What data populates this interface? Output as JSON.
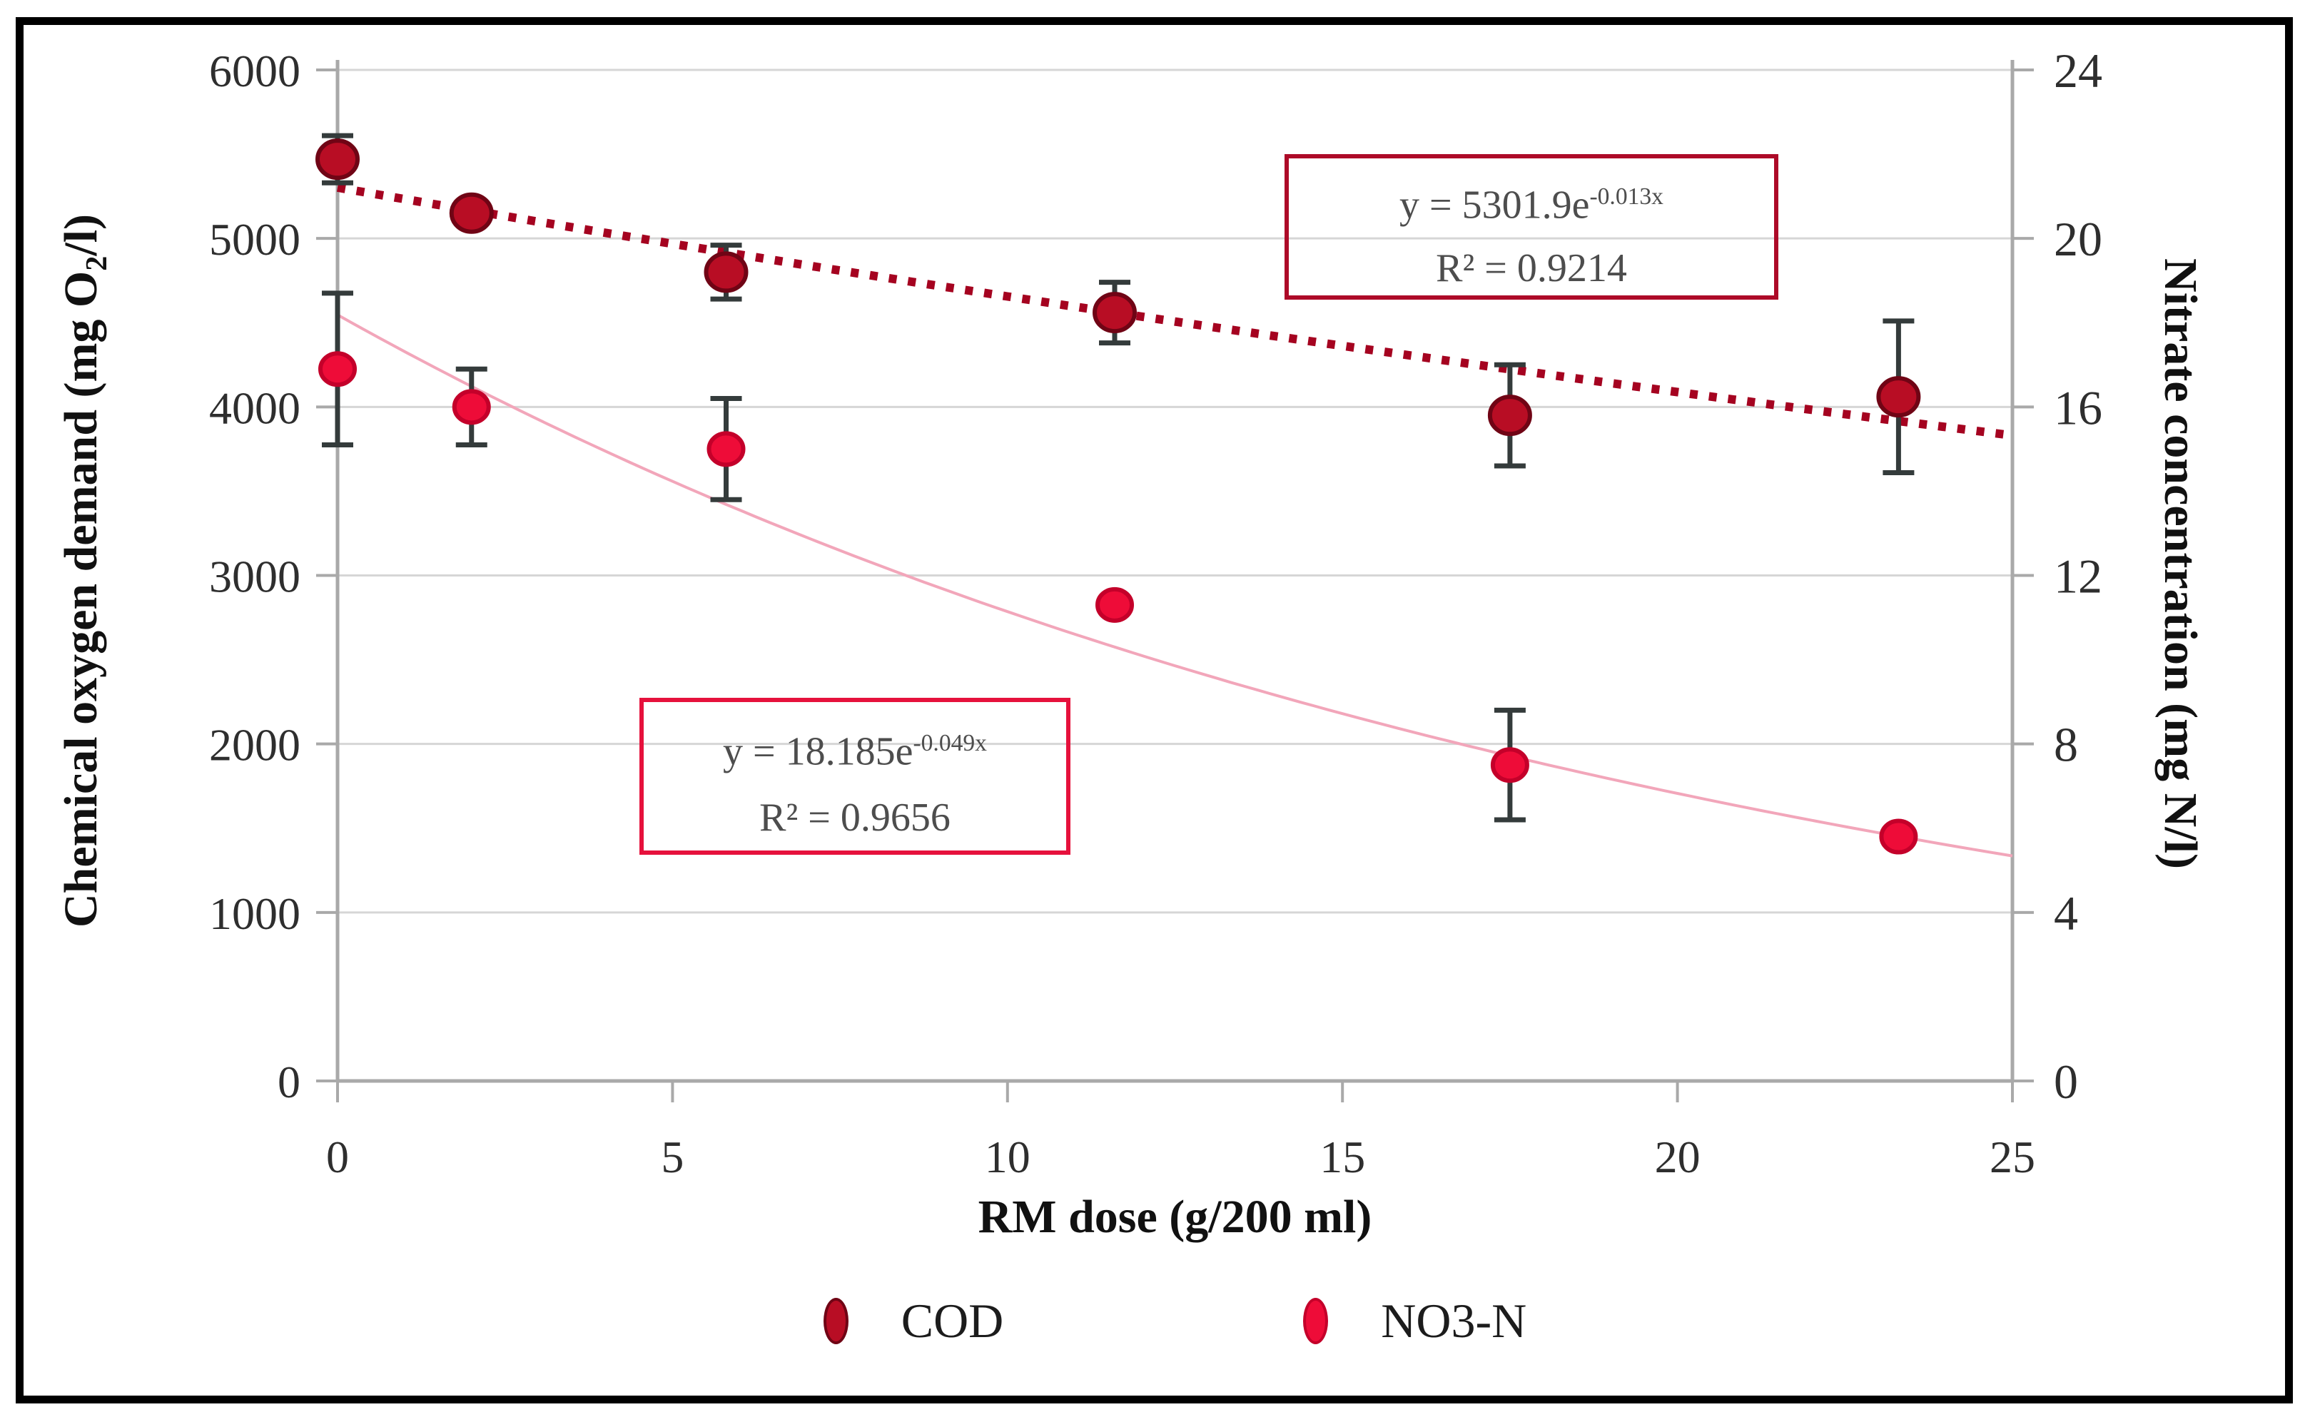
{
  "chart_data": {
    "type": "scatter",
    "title": "",
    "xlabel": "RM dose (g/200 ml)",
    "ylabel_left": {
      "pre": "Chemical oxygen demand (mg O",
      "sub": "2",
      "post": "/l)"
    },
    "ylabel_right": "Nitrate concentration (mg N/l)",
    "xlim": [
      0,
      25
    ],
    "xticks": [
      0,
      5,
      10,
      15,
      20,
      25
    ],
    "ylim_left": [
      0,
      6000
    ],
    "yticks_left": [
      0,
      1000,
      2000,
      3000,
      4000,
      5000,
      6000
    ],
    "ylim_right": [
      0,
      24
    ],
    "yticks_right": [
      0,
      4,
      8,
      12,
      16,
      20,
      24
    ],
    "grid": true,
    "legend_position": "bottom",
    "gridline_color": "#d6d6d6",
    "axis_color": "#a9a9a9",
    "tick_label_color": "#2e2e2e",
    "error_bar_color": "#343b3b",
    "series": [
      {
        "name": "COD",
        "axis": "left",
        "marker_color": "#b80d24",
        "marker_edge": "#700415",
        "x": [
          0,
          2,
          5.8,
          11.6,
          17.5,
          23.3
        ],
        "y": [
          5470,
          5150,
          4800,
          4560,
          3950,
          4060
        ],
        "yerr": [
          140,
          0,
          160,
          180,
          300,
          450
        ],
        "trendline": {
          "type": "exponential",
          "a": 5301.9,
          "b": -0.013,
          "style": "dotted",
          "color": "#a50320",
          "equation_base": "y = 5301.9e",
          "equation_exp": "-0.013x",
          "r2": "R² = 0.9214",
          "box_color": "#ad0a28"
        }
      },
      {
        "name": "NO3-N",
        "axis": "right",
        "marker_color": "#ee0c38",
        "marker_edge": "#c4002a",
        "x": [
          0,
          2,
          5.8,
          11.6,
          17.5,
          23.3
        ],
        "y": [
          16.9,
          16.0,
          15.0,
          11.3,
          7.5,
          5.8
        ],
        "yerr": [
          1.8,
          0.9,
          1.2,
          0,
          1.3,
          0
        ],
        "trendline": {
          "type": "exponential",
          "a": 18.185,
          "b": -0.049,
          "style": "solid",
          "color": "#f2a6ba",
          "equation_base": "y = 18.185e",
          "equation_exp": "-0.049x",
          "r2": "R² = 0.9656",
          "box_color": "#e6113c"
        }
      }
    ]
  }
}
